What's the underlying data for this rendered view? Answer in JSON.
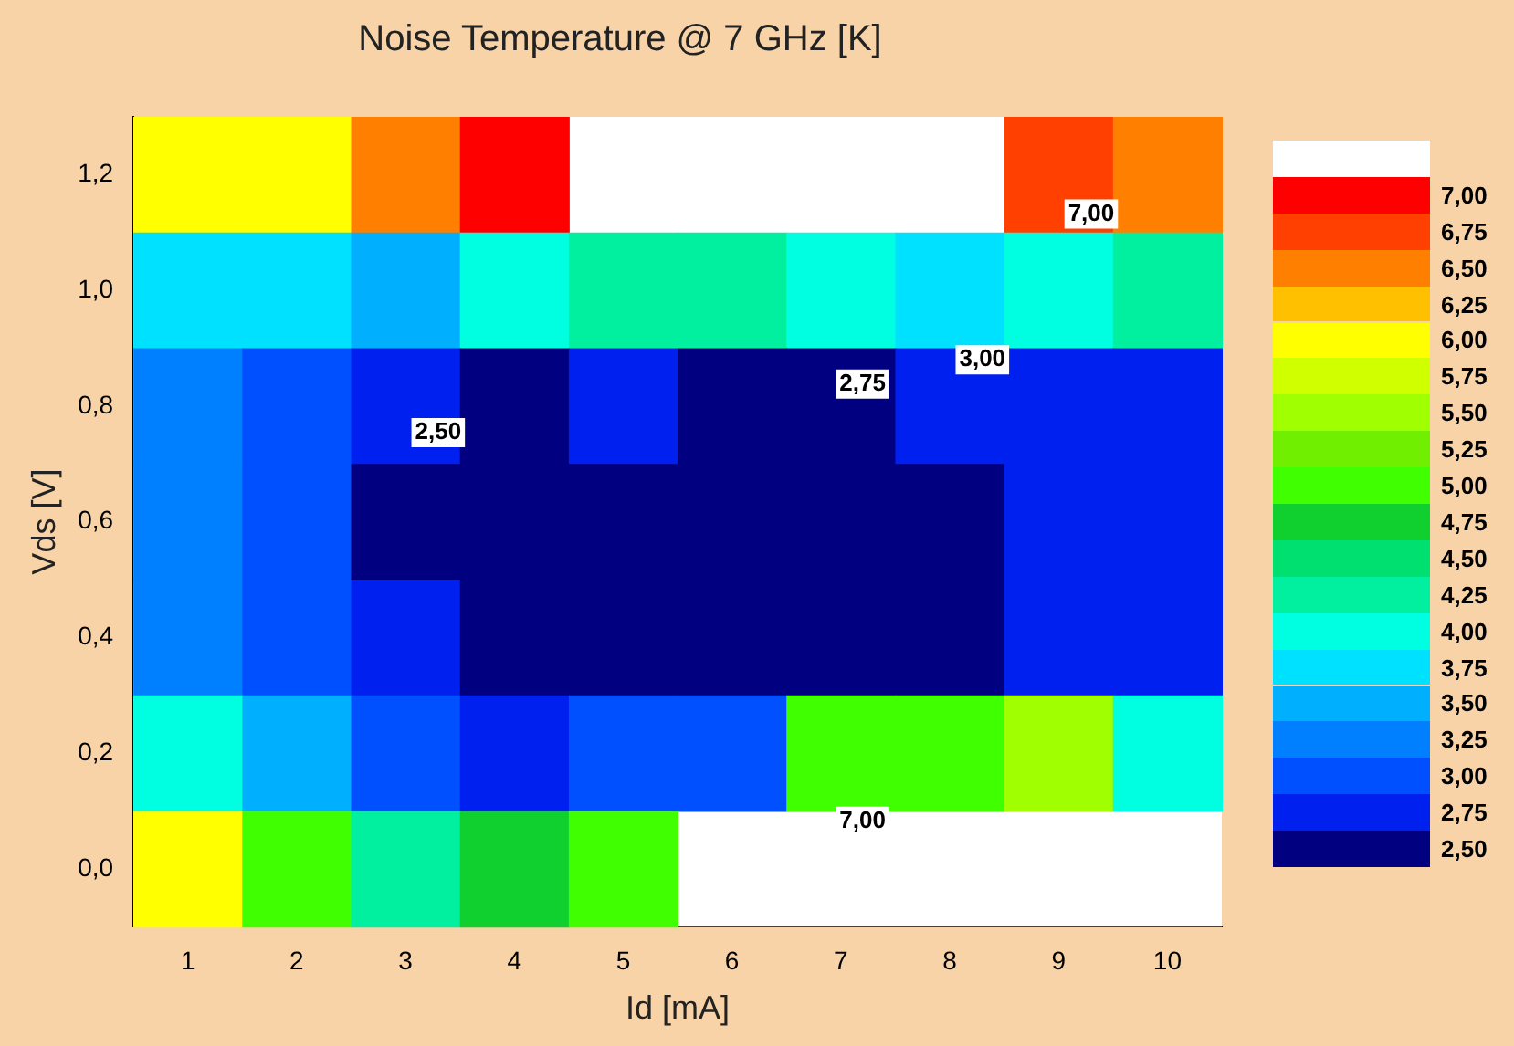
{
  "chart_data": {
    "type": "heatmap",
    "title": "Noise Temperature @ 7 GHz [K]",
    "xlabel": "Id [mA]",
    "ylabel": "Vds [V]",
    "categories": [
      "1",
      "2",
      "3",
      "4",
      "5",
      "6",
      "7",
      "8",
      "9",
      "10"
    ],
    "y_categories": [
      "1,2",
      "1,0",
      "0,8",
      "0,6",
      "0,4",
      "0,2",
      "0,0"
    ],
    "cells": [
      [
        6.0,
        6.0,
        6.5,
        7.0,
        null,
        null,
        null,
        null,
        6.75,
        6.5
      ],
      [
        3.75,
        3.75,
        3.5,
        4.0,
        4.25,
        4.25,
        4.0,
        3.75,
        4.0,
        4.25
      ],
      [
        3.25,
        3.0,
        2.75,
        2.5,
        2.75,
        2.5,
        2.5,
        2.75,
        2.75,
        2.75
      ],
      [
        3.25,
        3.0,
        2.5,
        2.5,
        2.5,
        2.5,
        2.5,
        2.5,
        2.75,
        2.75
      ],
      [
        3.25,
        3.0,
        2.75,
        2.5,
        2.5,
        2.5,
        2.5,
        2.5,
        2.75,
        2.75
      ],
      [
        4.0,
        3.5,
        3.0,
        2.75,
        3.0,
        3.0,
        5.0,
        5.0,
        5.5,
        4.0
      ],
      [
        6.0,
        5.0,
        4.25,
        4.75,
        5.0,
        null,
        null,
        null,
        null,
        null
      ]
    ],
    "clim": [
      2.25,
      7.25
    ],
    "cticks": [
      {
        "value": 2.5,
        "label": "2,50"
      },
      {
        "value": 2.75,
        "label": "2,75"
      },
      {
        "value": 3.0,
        "label": "3,00"
      },
      {
        "value": 3.25,
        "label": "3,25"
      },
      {
        "value": 3.5,
        "label": "3,50"
      },
      {
        "value": 3.75,
        "label": "3,75"
      },
      {
        "value": 4.0,
        "label": "4,00"
      },
      {
        "value": 4.25,
        "label": "4,25"
      },
      {
        "value": 4.5,
        "label": "4,50"
      },
      {
        "value": 4.75,
        "label": "4,75"
      },
      {
        "value": 5.0,
        "label": "5,00"
      },
      {
        "value": 5.25,
        "label": "5,25"
      },
      {
        "value": 5.5,
        "label": "5,50"
      },
      {
        "value": 5.75,
        "label": "5,75"
      },
      {
        "value": 6.0,
        "label": "6,00"
      },
      {
        "value": 6.25,
        "label": "6,25"
      },
      {
        "value": 6.5,
        "label": "6,50"
      },
      {
        "value": 6.75,
        "label": "6,75"
      },
      {
        "value": 7.0,
        "label": "7,00"
      }
    ],
    "annotations": [
      "7,00",
      "3,00",
      "2,75",
      "2,50",
      "7,00"
    ]
  }
}
